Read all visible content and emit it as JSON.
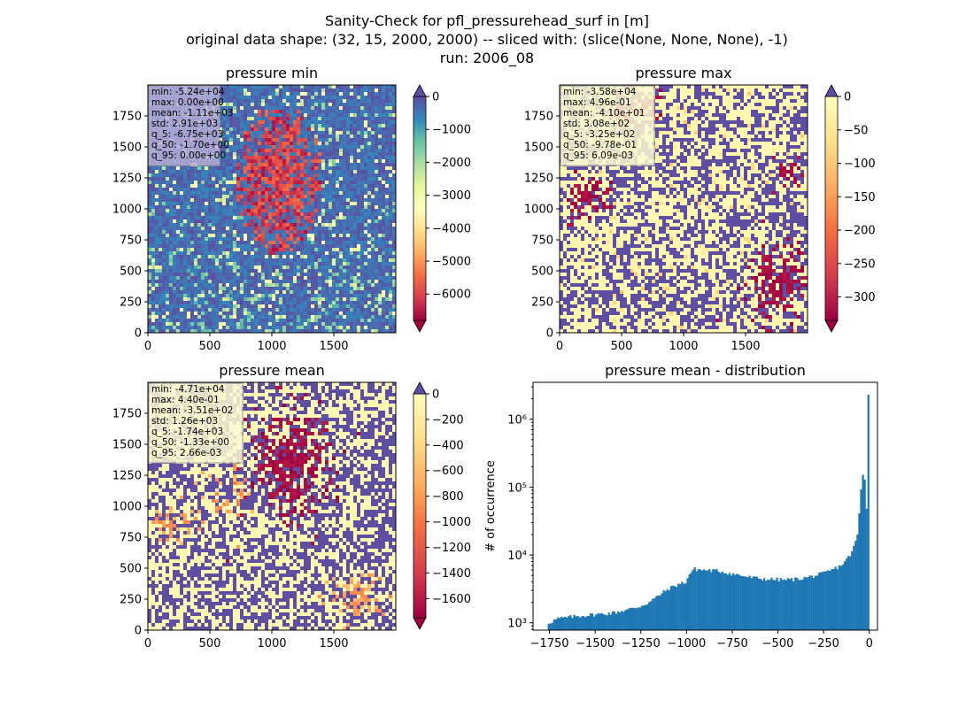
{
  "suptitle": [
    "Sanity-Check for pfl_pressurehead_surf in [m]",
    "original data shape: (32, 15, 2000, 2000) -- sliced with: (slice(None, None, None), -1)",
    "run: 2006_08"
  ],
  "chart_data": [
    {
      "type": "heatmap",
      "title": "pressure min",
      "colormap": "Spectral",
      "xlim": [
        0,
        2000
      ],
      "ylim": [
        0,
        2000
      ],
      "xticks": [
        "0",
        "500",
        "1000",
        "1500"
      ],
      "yticks": [
        "0",
        "250",
        "500",
        "750",
        "1000",
        "1250",
        "1500",
        "1750"
      ],
      "colorbar": {
        "min": -6800,
        "max": 0,
        "ticks": [
          0,
          -1000,
          -2000,
          -3000,
          -4000,
          -5000,
          -6000
        ],
        "labels": [
          "0",
          "−1000",
          "−2000",
          "−3000",
          "−4000",
          "−5000",
          "−6000"
        ],
        "extend": "both"
      },
      "stats": [
        "min: -5.24e+04",
        "max: 0.00e+00",
        "mean: -1.11e+03",
        "std: 2.91e+03",
        "q_5: -6.75e+03",
        "q_50: -1.70e+00",
        "q_95: 0.00e+00"
      ],
      "stats_box_color": "#b4acd6"
    },
    {
      "type": "heatmap",
      "title": "pressure max",
      "colormap": "Spectral",
      "xlim": [
        0,
        2000
      ],
      "ylim": [
        0,
        2000
      ],
      "xticks": [
        "0",
        "500",
        "1000",
        "1500"
      ],
      "yticks": [
        "0",
        "250",
        "500",
        "750",
        "1000",
        "1250",
        "1500",
        "1750"
      ],
      "colorbar": {
        "min": -335,
        "max": 0,
        "ticks": [
          0,
          -50,
          -100,
          -150,
          -200,
          -250,
          -300
        ],
        "labels": [
          "0",
          "−50",
          "−100",
          "−150",
          "−200",
          "−250",
          "−300"
        ],
        "extend": "both"
      },
      "stats": [
        "min: -3.58e+04",
        "max: 4.96e-01",
        "mean: -4.10e+01",
        "std: 3.08e+02",
        "q_5: -3.25e+02",
        "q_50: -9.78e-01",
        "q_95: 6.09e-03"
      ],
      "stats_box_color": "#fbf9d4"
    },
    {
      "type": "heatmap",
      "title": "pressure mean",
      "colormap": "Spectral",
      "xlim": [
        0,
        2000
      ],
      "ylim": [
        0,
        2000
      ],
      "xticks": [
        "0",
        "500",
        "1000",
        "1500"
      ],
      "yticks": [
        "0",
        "250",
        "500",
        "750",
        "1000",
        "1250",
        "1500",
        "1750"
      ],
      "colorbar": {
        "min": -1750,
        "max": 0,
        "ticks": [
          0,
          -200,
          -400,
          -600,
          -800,
          -1000,
          -1200,
          -1400,
          -1600
        ],
        "labels": [
          "0",
          "−200",
          "−400",
          "−600",
          "−800",
          "−1000",
          "−1200",
          "−1400",
          "−1600"
        ],
        "extend": "both"
      },
      "stats": [
        "min: -4.71e+04",
        "max: 4.40e-01",
        "mean: -3.51e+02",
        "std: 1.26e+03",
        "q_5: -1.74e+03",
        "q_50: -1.33e+00",
        "q_95: 2.66e-03"
      ],
      "stats_box_color": "#fbf9d4"
    },
    {
      "type": "bar",
      "title": "pressure mean - distribution",
      "ylabel": "# of occurrence",
      "xlabel": "",
      "color": "#1f77b4",
      "yscale": "log",
      "xlim": [
        -1840,
        45
      ],
      "ylim": [
        780,
        3500000
      ],
      "xticks": [
        -1750,
        -1500,
        -1250,
        -1000,
        -750,
        -500,
        -250,
        0
      ],
      "xtick_labels": [
        "−1750",
        "−1500",
        "−1250",
        "−1000",
        "−750",
        "−500",
        "−250",
        "0"
      ],
      "yticks": [
        1000,
        10000,
        100000,
        1000000
      ],
      "ytick_labels": [
        "10³",
        "10⁴",
        "10⁵",
        "10⁶"
      ],
      "bin_width": 10,
      "profile": [
        [
          -1750,
          1000
        ],
        [
          -1700,
          1150
        ],
        [
          -1600,
          1250
        ],
        [
          -1500,
          1320
        ],
        [
          -1400,
          1400
        ],
        [
          -1300,
          1600
        ],
        [
          -1250,
          1750
        ],
        [
          -1200,
          2000
        ],
        [
          -1150,
          2500
        ],
        [
          -1100,
          3100
        ],
        [
          -1050,
          3600
        ],
        [
          -1000,
          4000
        ],
        [
          -975,
          5500
        ],
        [
          -950,
          6200
        ],
        [
          -900,
          6000
        ],
        [
          -850,
          5900
        ],
        [
          -800,
          5700
        ],
        [
          -750,
          5300
        ],
        [
          -700,
          5000
        ],
        [
          -650,
          4700
        ],
        [
          -600,
          4500
        ],
        [
          -550,
          4400
        ],
        [
          -500,
          4350
        ],
        [
          -450,
          4300
        ],
        [
          -400,
          4400
        ],
        [
          -350,
          4600
        ],
        [
          -300,
          4900
        ],
        [
          -250,
          5300
        ],
        [
          -200,
          6000
        ],
        [
          -150,
          7000
        ],
        [
          -120,
          8500
        ],
        [
          -100,
          10000
        ],
        [
          -80,
          13000
        ],
        [
          -60,
          20000
        ],
        [
          -50,
          40000
        ],
        [
          -40,
          90000
        ],
        [
          -30,
          150000
        ],
        [
          -20,
          130000
        ],
        [
          -10,
          50000
        ],
        [
          0,
          2300000
        ]
      ]
    }
  ]
}
